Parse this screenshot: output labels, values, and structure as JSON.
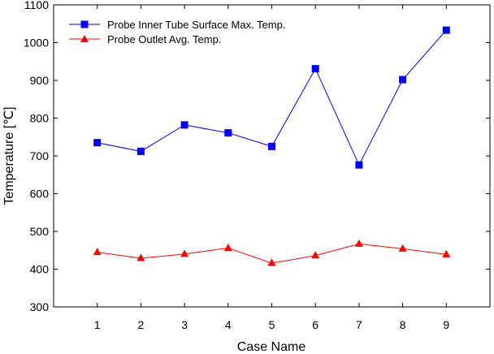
{
  "chart_data": {
    "type": "line",
    "title": "",
    "xlabel": "Case Name",
    "ylabel": "Temperature [℃]",
    "x": [
      1,
      2,
      3,
      4,
      5,
      6,
      7,
      8,
      9
    ],
    "xticks": [
      "1",
      "2",
      "3",
      "4",
      "5",
      "6",
      "7",
      "8",
      "9"
    ],
    "xlim": [
      0,
      10
    ],
    "ylim": [
      300,
      1100
    ],
    "yticks": [
      "300",
      "400",
      "500",
      "600",
      "700",
      "800",
      "900",
      "1000",
      "1100"
    ],
    "grid": false,
    "legend": "top-left",
    "series": [
      {
        "name": "Probe Inner Tube Surface Max. Temp.",
        "color": "#0000ff",
        "marker": "square",
        "values": [
          735,
          712,
          782,
          761,
          725,
          931,
          676,
          902,
          1033
        ]
      },
      {
        "name": "Probe Outlet Avg. Temp.",
        "color": "#ff0000",
        "marker": "triangle",
        "values": [
          445,
          429,
          440,
          456,
          416,
          436,
          467,
          454,
          439
        ]
      }
    ]
  }
}
